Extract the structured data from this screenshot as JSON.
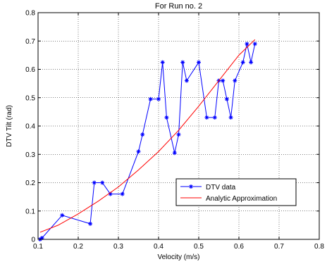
{
  "chart_data": {
    "type": "line",
    "title": "For Run no. 2",
    "xlabel": "Velocity (m/s)",
    "ylabel": "DTV Tilt (rad)",
    "xlim": [
      0.1,
      0.8
    ],
    "ylim": [
      0,
      0.8
    ],
    "xticks": [
      0.1,
      0.2,
      0.3,
      0.4,
      0.5,
      0.6,
      0.7,
      0.8
    ],
    "xtick_labels": [
      "0.1",
      "0.2",
      "0.3",
      "0.4",
      "0.5",
      "0.6",
      "0.7",
      "0.8"
    ],
    "yticks": [
      0,
      0.1,
      0.2,
      0.3,
      0.4,
      0.5,
      0.6,
      0.7,
      0.8
    ],
    "ytick_labels": [
      "0",
      "0.1",
      "0.2",
      "0.3",
      "0.4",
      "0.5",
      "0.6",
      "0.7",
      "0.8"
    ],
    "grid": true,
    "legend_position": "lower-right",
    "series": [
      {
        "name": "DTV data",
        "color": "#0000ff",
        "marker": "star",
        "x": [
          0.105,
          0.11,
          0.16,
          0.23,
          0.24,
          0.26,
          0.28,
          0.31,
          0.35,
          0.36,
          0.38,
          0.4,
          0.41,
          0.42,
          0.44,
          0.45,
          0.46,
          0.47,
          0.5,
          0.52,
          0.54,
          0.55,
          0.56,
          0.57,
          0.58,
          0.59,
          0.61,
          0.62,
          0.63,
          0.64
        ],
        "y": [
          0.0,
          0.005,
          0.085,
          0.055,
          0.2,
          0.2,
          0.16,
          0.16,
          0.31,
          0.37,
          0.495,
          0.495,
          0.625,
          0.43,
          0.305,
          0.37,
          0.625,
          0.56,
          0.625,
          0.43,
          0.43,
          0.56,
          0.56,
          0.495,
          0.43,
          0.56,
          0.625,
          0.69,
          0.625,
          0.69
        ]
      },
      {
        "name": "Analytic Approximation",
        "color": "#ff0000",
        "marker": "none",
        "x": [
          0.105,
          0.15,
          0.2,
          0.25,
          0.3,
          0.35,
          0.4,
          0.45,
          0.5,
          0.55,
          0.6,
          0.64
        ],
        "y": [
          0.025,
          0.05,
          0.09,
          0.135,
          0.185,
          0.245,
          0.31,
          0.385,
          0.47,
          0.56,
          0.65,
          0.705
        ]
      }
    ]
  }
}
